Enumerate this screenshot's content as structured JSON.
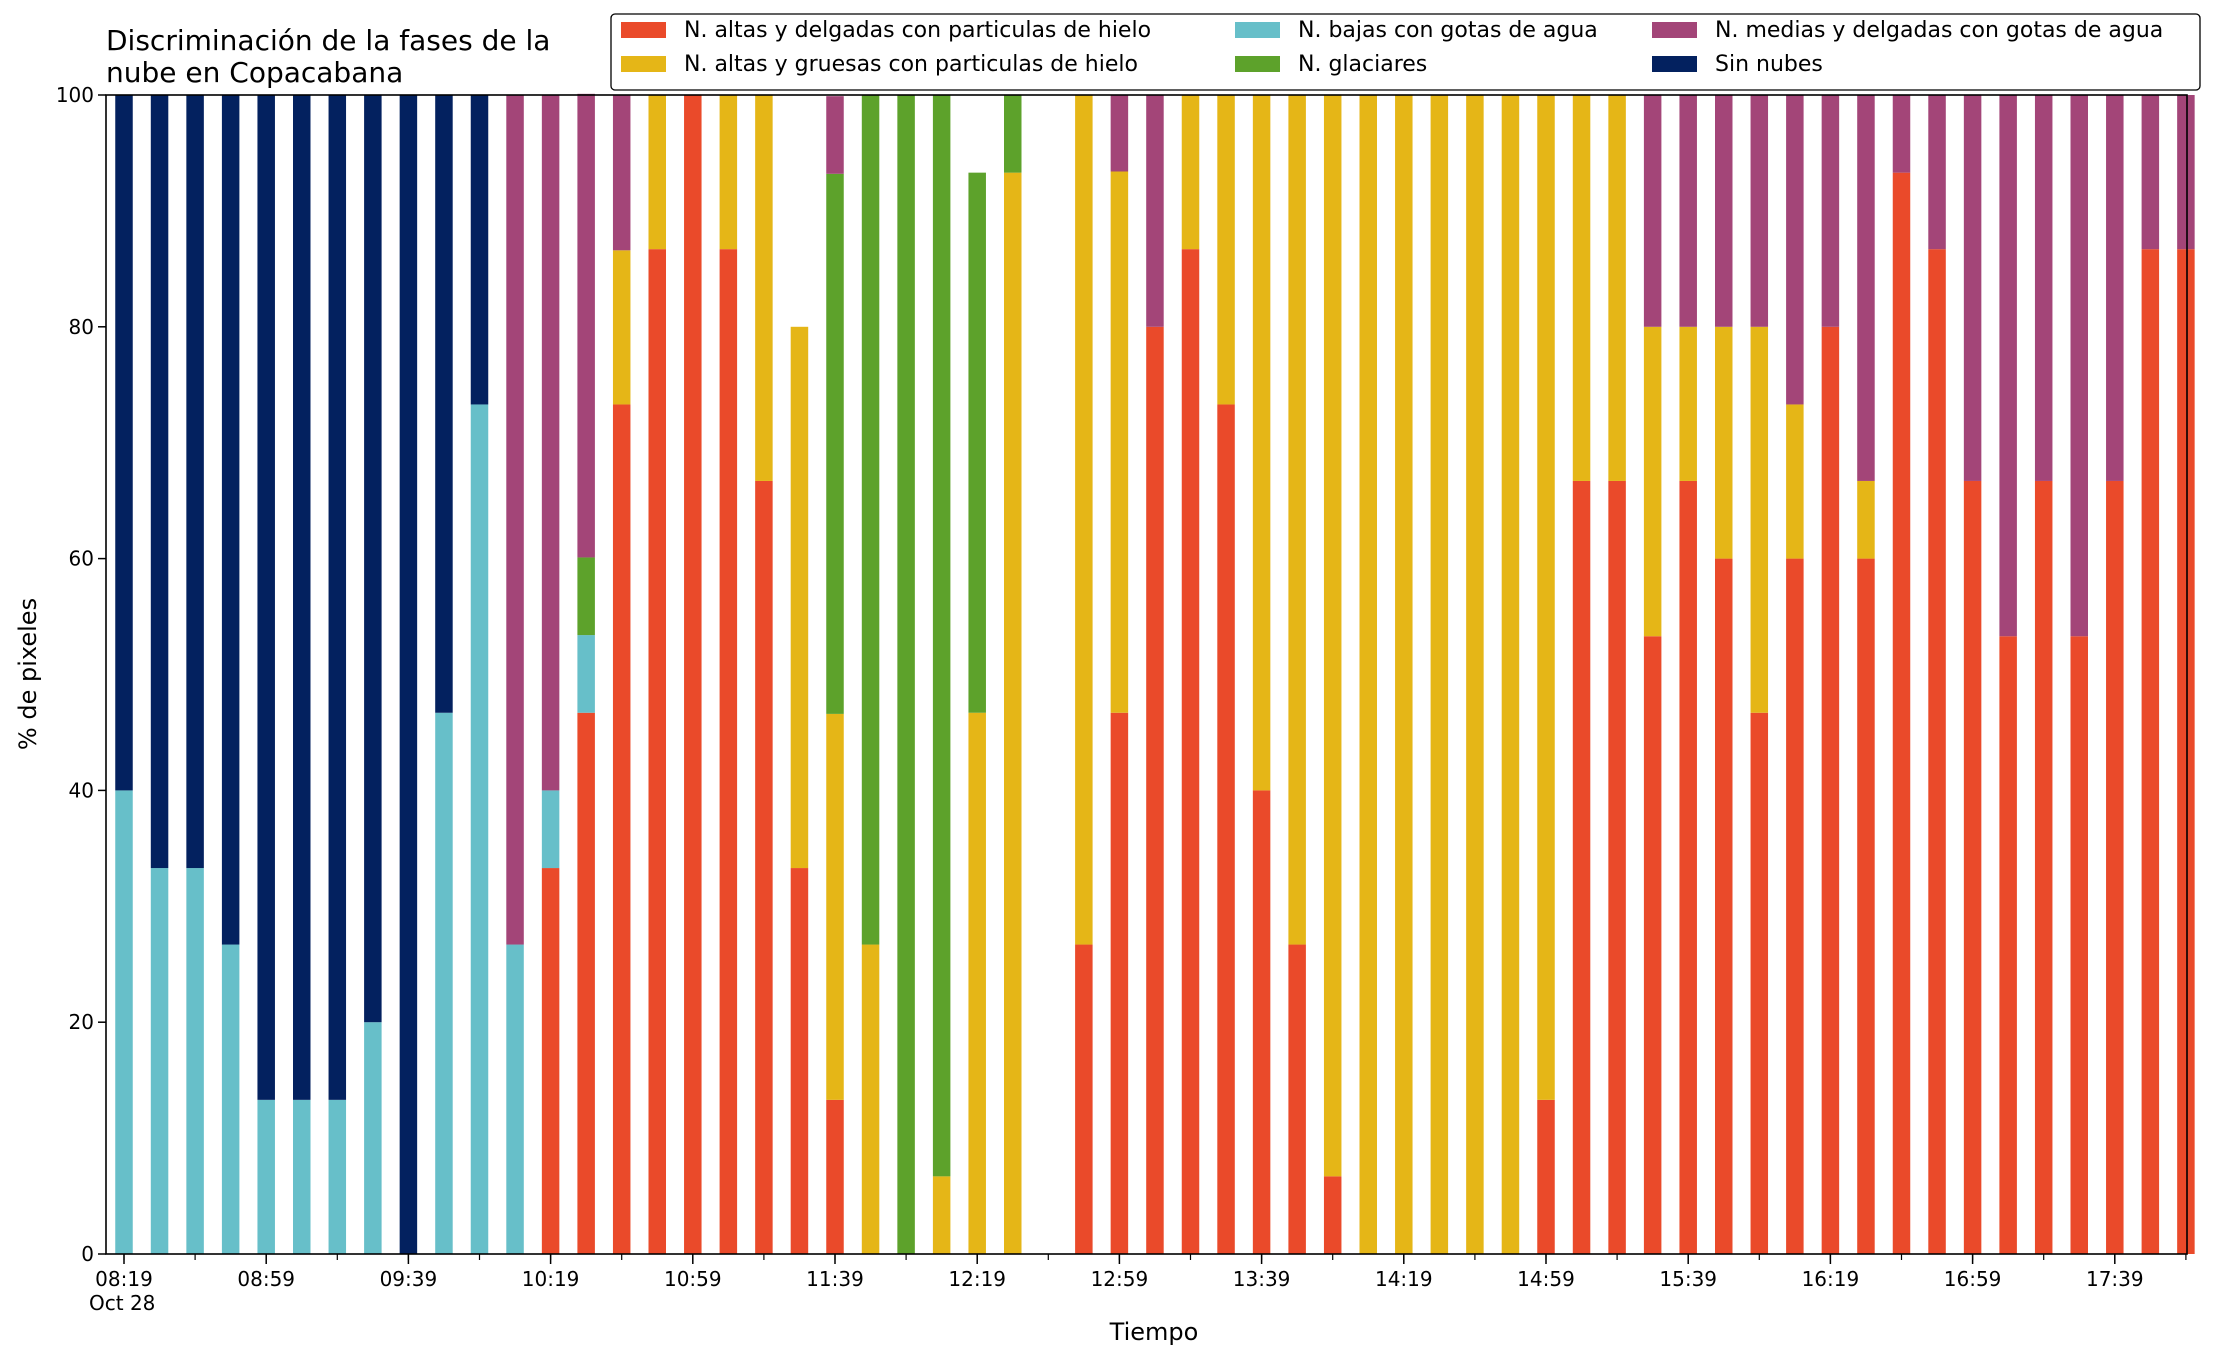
{
  "chart_data": {
    "type": "bar",
    "stacked": true,
    "title": "Discriminación de la fases de la\nnube en Copacabana",
    "xlabel": "Tiempo",
    "ylabel": "% de pixeles",
    "ylim": [
      0,
      100
    ],
    "yticks": [
      0,
      20,
      40,
      60,
      80,
      100
    ],
    "grid": false,
    "legend_position": "top",
    "x_first_label_sub": "Oct 28",
    "xtick_labels": [
      "08:19",
      "08:59",
      "09:39",
      "10:19",
      "10:59",
      "11:39",
      "12:19",
      "12:59",
      "13:39",
      "14:19",
      "14:59",
      "15:39",
      "16:19",
      "16:59",
      "17:39"
    ],
    "series": [
      {
        "name": "N. altas y delgadas con particulas de hielo",
        "color": "#ea4a2a",
        "values": [
          0,
          0,
          0,
          0,
          0,
          0,
          0,
          0,
          0,
          0,
          0,
          0,
          33.3,
          46.7,
          73.3,
          86.7,
          100,
          86.7,
          66.7,
          33.3,
          13.3,
          0,
          0,
          0,
          0,
          0,
          0,
          26.7,
          46.7,
          80,
          86.7,
          73.3,
          40,
          26.7,
          6.7,
          0,
          0,
          0,
          0,
          0,
          13.3,
          66.7,
          66.7,
          53.3,
          66.7,
          60,
          46.7,
          60,
          80,
          60,
          93.3,
          86.7,
          66.7,
          53.3,
          66.7,
          53.3,
          66.7,
          86.7,
          86.7
        ]
      },
      {
        "name": "N. altas y gruesas con particulas de hielo",
        "color": "#e5b617",
        "values": [
          0,
          0,
          0,
          0,
          0,
          0,
          0,
          0,
          0,
          0,
          0,
          0,
          0,
          0,
          13.3,
          13.3,
          0,
          13.3,
          33.3,
          46.7,
          33.3,
          26.7,
          0,
          6.7,
          46.7,
          93.3,
          0,
          73.3,
          46.7,
          0,
          13.3,
          26.7,
          60,
          73.3,
          93.3,
          100,
          100,
          100,
          100,
          100,
          86.7,
          33.3,
          33.3,
          26.7,
          13.3,
          20,
          33.3,
          13.3,
          0,
          6.7,
          0,
          0,
          0,
          0,
          0,
          0,
          0,
          0,
          0
        ]
      },
      {
        "name": "N. bajas con gotas de agua",
        "color": "#67bfc9",
        "values": [
          40,
          33.3,
          33.3,
          26.7,
          13.3,
          13.3,
          13.3,
          20,
          0,
          46.7,
          73.3,
          26.7,
          6.7,
          6.7,
          0,
          0,
          0,
          0,
          0,
          0,
          0,
          0,
          0,
          0,
          0,
          0,
          0,
          0,
          0,
          0,
          0,
          0,
          0,
          0,
          0,
          0,
          0,
          0,
          0,
          0,
          0,
          0,
          0,
          0,
          0,
          0,
          0,
          0,
          0,
          0,
          0,
          0,
          0,
          0,
          0,
          0,
          0,
          0,
          0
        ]
      },
      {
        "name": "N. glaciares",
        "color": "#5da22b",
        "values": [
          0,
          0,
          0,
          0,
          0,
          0,
          0,
          0,
          0,
          0,
          0,
          0,
          0,
          6.7,
          0,
          0,
          0,
          0,
          0,
          0,
          46.6,
          73.3,
          100,
          93.3,
          46.6,
          6.7,
          0,
          0,
          0,
          0,
          0,
          0,
          0,
          0,
          0,
          0,
          0,
          0,
          0,
          0,
          0,
          0,
          0,
          0,
          0,
          0,
          0,
          0,
          0,
          0,
          0,
          0,
          0,
          0,
          0,
          0,
          0,
          0,
          0
        ]
      },
      {
        "name": "N. medias y delgadas con gotas de agua",
        "color": "#a34578",
        "values": [
          0,
          0,
          0,
          0,
          0,
          0,
          0,
          0,
          0,
          0,
          0,
          73.3,
          60,
          40,
          13.4,
          0,
          0,
          0,
          0,
          0,
          6.7,
          0,
          0,
          0,
          0,
          0,
          0,
          0,
          6.6,
          20,
          0,
          0,
          0,
          0,
          0,
          0,
          0,
          0,
          0,
          0,
          0,
          0,
          0,
          20,
          20,
          20,
          20,
          26.7,
          20,
          33.3,
          6.7,
          13.3,
          33.3,
          46.7,
          33.3,
          46.7,
          33.3,
          13.3,
          13.3
        ]
      },
      {
        "name": "Sin nubes",
        "color": "#03215f",
        "values": [
          60,
          66.7,
          66.7,
          73.3,
          86.7,
          86.7,
          86.7,
          80,
          100,
          53.3,
          26.7,
          0,
          0,
          0,
          0,
          0,
          0,
          0,
          0,
          0,
          0,
          0,
          0,
          0,
          0,
          0,
          0,
          0,
          0,
          0,
          0,
          0,
          0,
          0,
          0,
          0,
          0,
          0,
          0,
          0,
          0,
          0,
          0,
          0,
          0,
          0,
          0,
          0,
          0,
          0,
          0,
          0,
          0,
          0,
          0,
          0,
          0,
          0,
          0
        ]
      }
    ],
    "legend_order": [
      0,
      1,
      2,
      3,
      4,
      5
    ]
  }
}
